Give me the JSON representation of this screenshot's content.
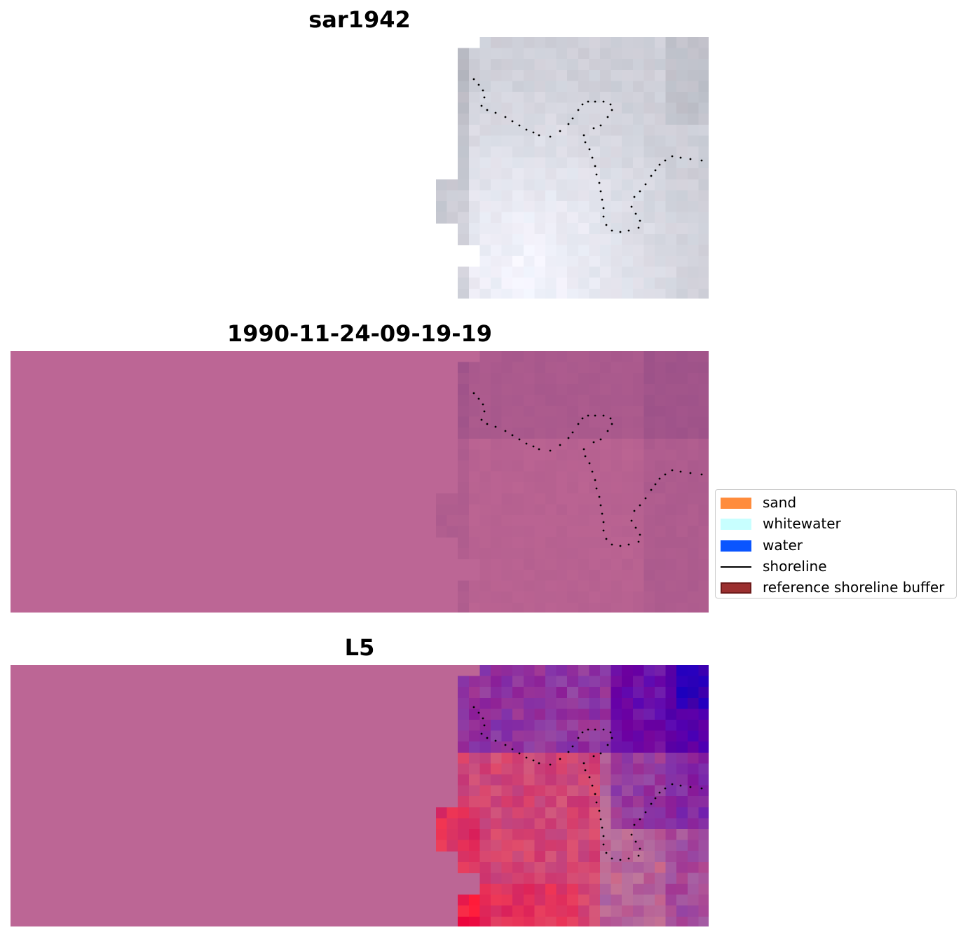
{
  "panels": [
    {
      "title": "sar1942",
      "kind": "sar"
    },
    {
      "title": "1990-11-24-09-19-19",
      "kind": "index"
    },
    {
      "title": "L5",
      "kind": "classified"
    }
  ],
  "legend": {
    "items": [
      {
        "label": "sand",
        "color": "#ff8c3c",
        "type": "patch"
      },
      {
        "label": "whitewater",
        "color": "#c8ffff",
        "type": "patch"
      },
      {
        "label": "water",
        "color": "#0a55ff",
        "type": "patch"
      },
      {
        "label": "shoreline",
        "color": "#000000",
        "type": "line"
      },
      {
        "label": "reference shoreline buffer",
        "color": "#9b2f2f",
        "type": "patch-outlined"
      }
    ]
  },
  "colors": {
    "background_fill": "#bc6695",
    "shoreline_dots": "#000000"
  }
}
